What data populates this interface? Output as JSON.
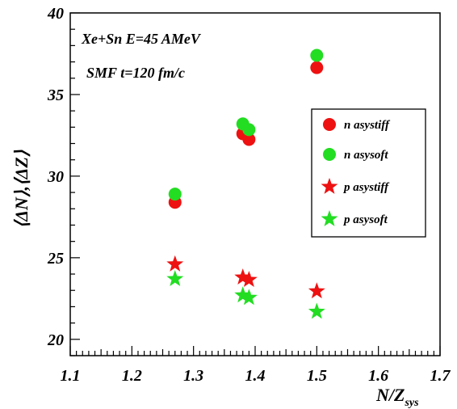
{
  "chart_data": {
    "type": "scatter",
    "annotations": [
      "Xe+Sn E=45 AMeV",
      "SMF t=120 fm/c"
    ],
    "xlabel": {
      "main": "N/Z",
      "sub": "sys"
    },
    "ylabel": "⟨ΔN⟩,⟨ΔZ⟩",
    "xlim": [
      1.1,
      1.7
    ],
    "ylim": [
      19,
      40
    ],
    "x_ticks": [
      1.1,
      1.2,
      1.3,
      1.4,
      1.5,
      1.6,
      1.7
    ],
    "x_tick_labels": [
      "1.1",
      "1.2",
      "1.3",
      "1.4",
      "1.5",
      "1.6",
      "1.7"
    ],
    "y_ticks": [
      20,
      25,
      30,
      35,
      40
    ],
    "y_tick_labels": [
      "20",
      "25",
      "30",
      "35",
      "40"
    ],
    "grid": false,
    "legend_position": "right",
    "series": [
      {
        "name": "n asystiff",
        "marker": "circle",
        "color": "#ee1111",
        "points": [
          [
            1.27,
            28.4
          ],
          [
            1.38,
            32.6
          ],
          [
            1.39,
            32.25
          ],
          [
            1.5,
            36.65
          ]
        ]
      },
      {
        "name": "n asysoft",
        "marker": "circle",
        "color": "#22dd22",
        "points": [
          [
            1.27,
            28.9
          ],
          [
            1.38,
            33.2
          ],
          [
            1.39,
            32.85
          ],
          [
            1.5,
            37.4
          ]
        ]
      },
      {
        "name": "p asystiff",
        "marker": "star",
        "color": "#ee1111",
        "points": [
          [
            1.27,
            24.6
          ],
          [
            1.38,
            23.8
          ],
          [
            1.39,
            23.65
          ],
          [
            1.5,
            22.95
          ]
        ]
      },
      {
        "name": "p asysoft",
        "marker": "star",
        "color": "#22dd22",
        "points": [
          [
            1.27,
            23.7
          ],
          [
            1.38,
            22.7
          ],
          [
            1.39,
            22.55
          ],
          [
            1.5,
            21.7
          ]
        ]
      }
    ]
  }
}
